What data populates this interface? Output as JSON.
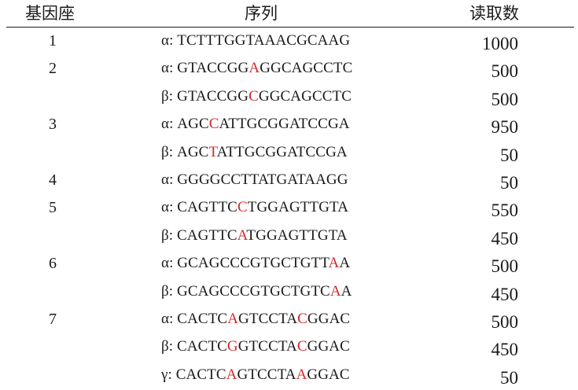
{
  "headers": {
    "locus": "基因座",
    "sequence": "序列",
    "reads": "读取数"
  },
  "highlight_color": "#d42828",
  "rows": [
    {
      "locus": "1",
      "allele": "α",
      "sequence": "TCTTTGGTAAACGCAAG",
      "highlight": [],
      "reads": "1000"
    },
    {
      "locus": "2",
      "allele": "α",
      "sequence": "GTACCGGAGGCAGCCTC",
      "highlight": [
        7
      ],
      "reads": "500"
    },
    {
      "locus": "",
      "allele": "β",
      "sequence": "GTACCGGCGGCAGCCTC",
      "highlight": [
        7
      ],
      "reads": "500"
    },
    {
      "locus": "3",
      "allele": "α",
      "sequence": "AGCCATTGCGGATCCGA",
      "highlight": [
        3
      ],
      "reads": "950"
    },
    {
      "locus": "",
      "allele": "β",
      "sequence": "AGCTATTGCGGATCCGA",
      "highlight": [
        3
      ],
      "reads": "50"
    },
    {
      "locus": "4",
      "allele": "α",
      "sequence": "GGGGCCTTATGATAAGG",
      "highlight": [],
      "reads": "50"
    },
    {
      "locus": "5",
      "allele": "α",
      "sequence": "CAGTTCCTGGAGTTGTA",
      "highlight": [
        6
      ],
      "reads": "550"
    },
    {
      "locus": "",
      "allele": "β",
      "sequence": "CAGTTCATGGAGTTGTA",
      "highlight": [
        6
      ],
      "reads": "450"
    },
    {
      "locus": "6",
      "allele": "α",
      "sequence": "GCAGCCCGTGCTGTTAA",
      "highlight": [
        15
      ],
      "reads": "500"
    },
    {
      "locus": "",
      "allele": "β",
      "sequence": "GCAGCCCGTGCTGTCAA",
      "highlight": [
        15
      ],
      "reads": "450"
    },
    {
      "locus": "7",
      "allele": "α",
      "sequence": "CACTCAGTCCTACGGAC",
      "highlight": [
        5,
        12
      ],
      "reads": "500"
    },
    {
      "locus": "",
      "allele": "β",
      "sequence": "CACTCGGTCCTACGGAC",
      "highlight": [
        5,
        12
      ],
      "reads": "450"
    },
    {
      "locus": "",
      "allele": "γ",
      "sequence": "CACTCAGTCCTAAGGAC",
      "highlight": [
        5,
        12
      ],
      "reads": "50"
    }
  ]
}
